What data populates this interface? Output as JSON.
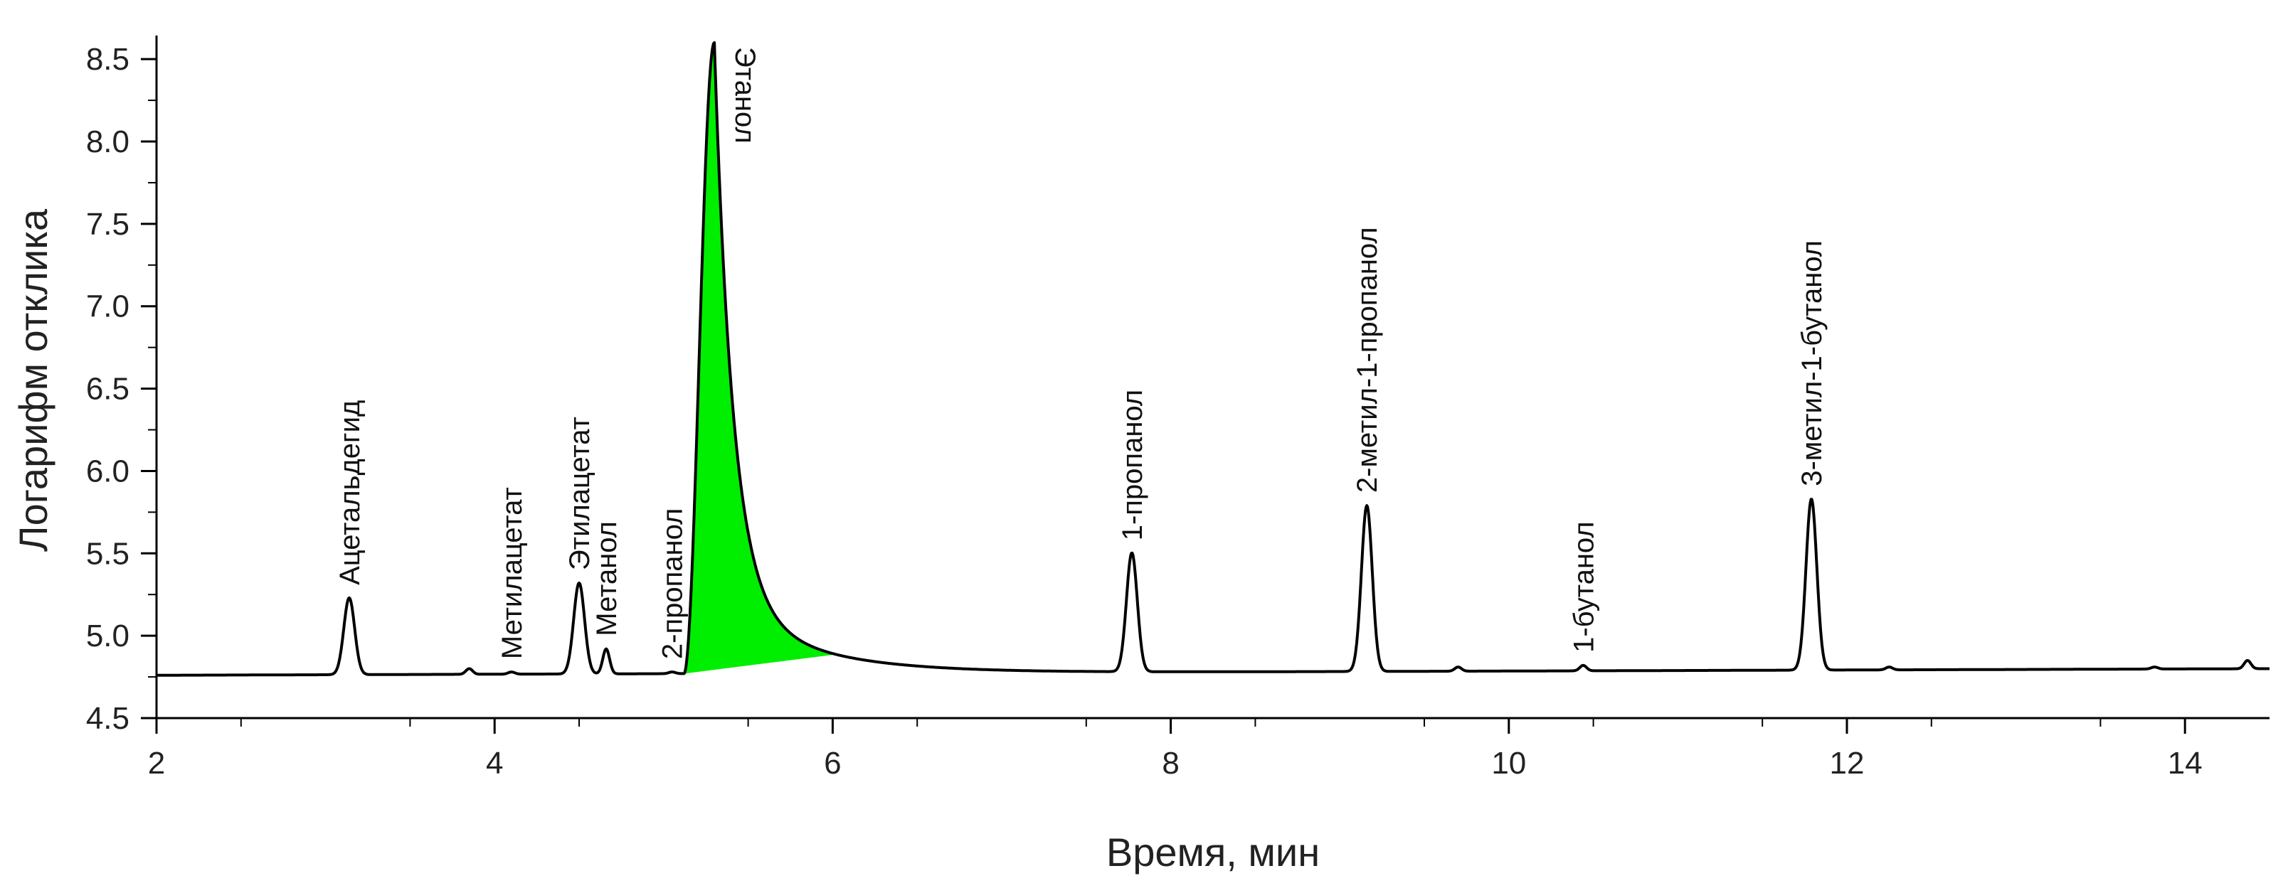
{
  "chart_data": {
    "type": "line",
    "title": "",
    "xlabel": "Время, мин",
    "ylabel": "Логарифм отклика",
    "xlim": [
      2,
      14.5
    ],
    "ylim": [
      4.5,
      8.6
    ],
    "x_ticks": [
      2,
      4,
      6,
      8,
      10,
      12,
      14
    ],
    "y_ticks": [
      4.5,
      5.0,
      5.5,
      6.0,
      6.5,
      7.0,
      7.5,
      8.0,
      8.5
    ],
    "grid": false,
    "legend": "none",
    "colors": {
      "line": "#000000",
      "highlight_fill": "#00ee00"
    },
    "baseline": {
      "start_value": 4.76,
      "end_value": 4.8
    },
    "highlighted_peak": {
      "name": "Этанол",
      "start": 5.12,
      "end": 6.02,
      "apex_time": 5.3,
      "apex_value": 8.6
    },
    "peaks": [
      {
        "name": "Ацетальдегид",
        "time": 3.14,
        "value": 5.23,
        "label": true
      },
      {
        "name": "",
        "time": 3.85,
        "value": 4.8,
        "label": false
      },
      {
        "name": "Метилацетат",
        "time": 4.1,
        "value": 4.78,
        "label": true
      },
      {
        "name": "Этилацетат",
        "time": 4.5,
        "value": 5.32,
        "label": true
      },
      {
        "name": "Метанол",
        "time": 4.66,
        "value": 4.92,
        "label": true
      },
      {
        "name": "2-пропанол",
        "time": 5.05,
        "value": 4.78,
        "label": true
      },
      {
        "name": "1-пропанол",
        "time": 7.77,
        "value": 5.5,
        "label": true
      },
      {
        "name": "2-метил-1-пропанол",
        "time": 9.16,
        "value": 5.79,
        "label": true
      },
      {
        "name": "",
        "time": 9.7,
        "value": 4.81,
        "label": false
      },
      {
        "name": "1-бутанол",
        "time": 10.44,
        "value": 4.82,
        "label": true
      },
      {
        "name": "3-метил-1-бутанол",
        "time": 11.79,
        "value": 5.83,
        "label": true
      },
      {
        "name": "",
        "time": 12.25,
        "value": 4.81,
        "label": false
      },
      {
        "name": "",
        "time": 13.82,
        "value": 4.81,
        "label": false
      },
      {
        "name": "",
        "time": 14.37,
        "value": 4.85,
        "label": false
      }
    ]
  }
}
